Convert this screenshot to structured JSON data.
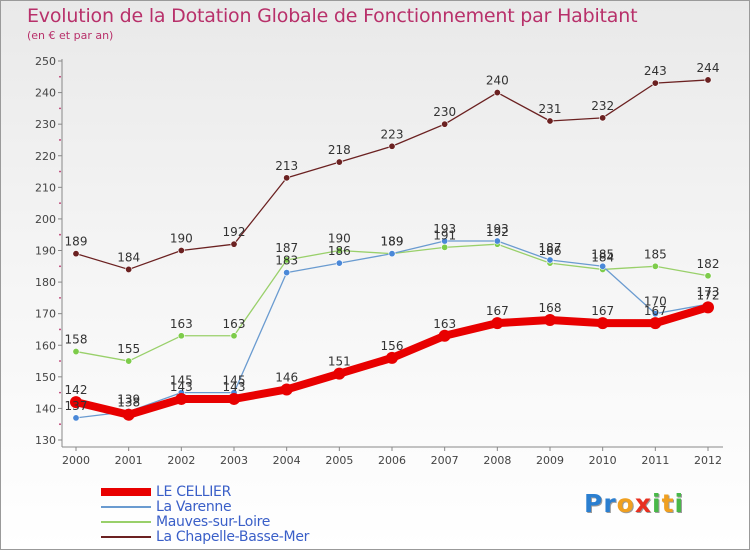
{
  "chart_data": {
    "type": "line",
    "title": "Evolution de la Dotation Globale de Fonctionnement par Habitant",
    "subtitle": "(en € et par an)",
    "x": [
      "2000",
      "2001",
      "2002",
      "2003",
      "2004",
      "2005",
      "2006",
      "2007",
      "2008",
      "2009",
      "2010",
      "2011",
      "2012"
    ],
    "ylim": [
      130,
      250
    ],
    "yticks": [
      130,
      140,
      150,
      160,
      170,
      180,
      190,
      200,
      210,
      220,
      230,
      240,
      250
    ],
    "grid": false,
    "legend_position": "bottom-left",
    "series": [
      {
        "name": "LE CELLIER",
        "color": "#e80000",
        "values": [
          142,
          138,
          143,
          143,
          146,
          151,
          156,
          163,
          167,
          168,
          167,
          167,
          172
        ]
      },
      {
        "name": "La Varenne",
        "color": "#6a9bd0",
        "values": [
          137,
          139,
          145,
          145,
          183,
          186,
          189,
          193,
          193,
          187,
          185,
          170,
          173
        ]
      },
      {
        "name": "Mauves-sur-Loire",
        "color": "#99d06a",
        "values": [
          158,
          155,
          163,
          163,
          187,
          190,
          189,
          191,
          192,
          186,
          184,
          185,
          182
        ]
      },
      {
        "name": "La Chapelle-Basse-Mer",
        "color": "#6b2121",
        "values": [
          189,
          184,
          190,
          192,
          213,
          218,
          223,
          230,
          240,
          231,
          232,
          243,
          244
        ]
      }
    ]
  },
  "brand": {
    "letters": [
      "P",
      "r",
      "o",
      "x",
      "i",
      "t",
      "i"
    ],
    "colors": [
      "#2b7fd0",
      "#2b7fd0",
      "#f0a020",
      "#e83020",
      "#48b848",
      "#f0a020",
      "#48b848"
    ]
  }
}
